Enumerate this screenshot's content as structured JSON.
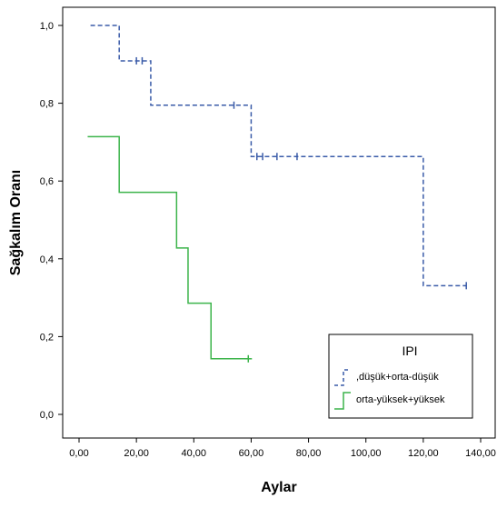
{
  "chart_data": {
    "type": "line",
    "subtype": "kaplan-meier-step",
    "xlabel": "Aylar",
    "ylabel": "Sağkalım Oranı",
    "xlim": [
      0,
      140
    ],
    "ylim": [
      0,
      1.0
    ],
    "x_ticks": [
      "0,00",
      "20,00",
      "40,00",
      "60,00",
      "80,00",
      "100,00",
      "120,00",
      "140,00"
    ],
    "y_ticks": [
      "0,0",
      "0,2",
      "0,4",
      "0,6",
      "0,8",
      "1,0"
    ],
    "grid": false,
    "legend": {
      "title": "IPI",
      "placement": "bottom-right"
    },
    "series": [
      {
        "name": ",düşük+orta-düşük",
        "color": "#3a5ba8",
        "dash": true,
        "steps": [
          [
            4,
            1.0
          ],
          [
            14,
            0.909
          ],
          [
            25,
            0.795
          ],
          [
            60,
            0.663
          ],
          [
            120,
            0.331
          ],
          [
            135,
            0.331
          ]
        ],
        "censored": [
          [
            20,
            0.909
          ],
          [
            22,
            0.909
          ],
          [
            54,
            0.795
          ],
          [
            62,
            0.663
          ],
          [
            64,
            0.663
          ],
          [
            69,
            0.663
          ],
          [
            76,
            0.663
          ],
          [
            135,
            0.331
          ]
        ]
      },
      {
        "name": "orta-yüksek+yüksek",
        "color": "#3cb44b",
        "dash": false,
        "steps": [
          [
            3,
            0.714
          ],
          [
            14,
            0.571
          ],
          [
            34,
            0.428
          ],
          [
            38,
            0.286
          ],
          [
            46,
            0.143
          ],
          [
            59,
            0.143
          ]
        ],
        "censored": [
          [
            59,
            0.143
          ]
        ]
      }
    ]
  }
}
